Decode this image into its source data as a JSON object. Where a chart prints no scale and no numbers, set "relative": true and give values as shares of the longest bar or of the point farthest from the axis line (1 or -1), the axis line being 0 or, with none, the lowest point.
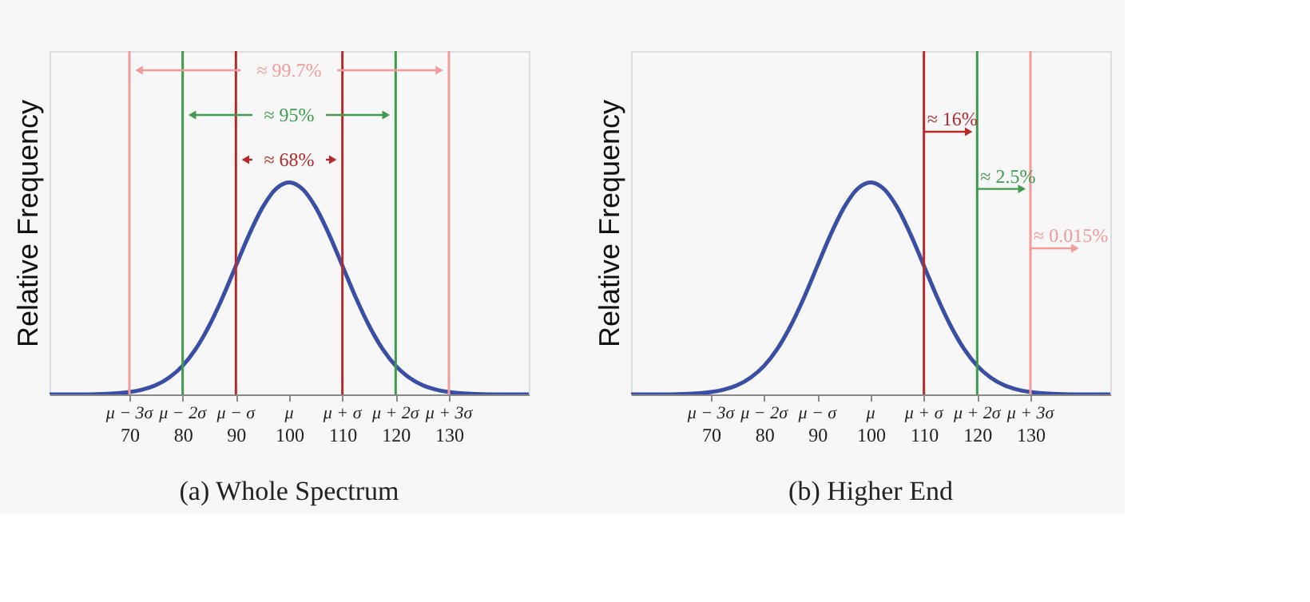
{
  "chart_data": [
    {
      "type": "line",
      "relative": true,
      "title": "(a) Whole Spectrum",
      "ylabel": "Relative Frequency",
      "grid": false,
      "marker": "none",
      "line_style": "solid",
      "x": [
        55,
        60,
        65,
        70,
        72.5,
        75,
        77.5,
        80,
        82.5,
        85,
        87.5,
        90,
        92.5,
        95,
        97.5,
        100,
        102.5,
        105,
        107.5,
        110,
        112.5,
        115,
        117.5,
        120,
        122.5,
        125,
        127.5,
        130,
        135,
        140,
        145
      ],
      "series": [
        {
          "color": "#3a4fa3",
          "values": [
            0.0,
            0.0,
            0.002,
            0.011,
            0.023,
            0.044,
            0.08,
            0.135,
            0.216,
            0.325,
            0.458,
            0.607,
            0.755,
            0.882,
            0.969,
            1,
            0.969,
            0.882,
            0.755,
            0.607,
            0.458,
            0.325,
            0.216,
            0.135,
            0.08,
            0.044,
            0.023,
            0.011,
            0.002,
            0.0,
            0.0
          ]
        }
      ],
      "xlim": [
        55,
        145
      ],
      "xticks": [
        70,
        80,
        90,
        100,
        110,
        120,
        130
      ],
      "ref_lines": [
        {
          "axis": "x",
          "value": 70,
          "color": "#f39a9a"
        },
        {
          "axis": "x",
          "value": 80,
          "color": "#3f9a4c"
        },
        {
          "axis": "x",
          "value": 90,
          "color": "#b32b2b"
        },
        {
          "axis": "x",
          "value": 110,
          "color": "#b32b2b"
        },
        {
          "axis": "x",
          "value": 120,
          "color": "#3f9a4c"
        },
        {
          "axis": "x",
          "value": 130,
          "color": "#f39a9a"
        }
      ],
      "annotations": [
        "≈ 99.7%",
        "≈ 95%",
        "≈ 68%",
        "μ − 3σ",
        "μ − 2σ",
        "μ − σ",
        "μ",
        "μ + σ",
        "μ + 2σ",
        "μ + 3σ"
      ]
    },
    {
      "type": "line",
      "relative": true,
      "title": "(b) Higher End",
      "ylabel": "Relative Frequency",
      "grid": false,
      "marker": "none",
      "line_style": "solid",
      "x": [
        55,
        60,
        65,
        70,
        72.5,
        75,
        77.5,
        80,
        82.5,
        85,
        87.5,
        90,
        92.5,
        95,
        97.5,
        100,
        102.5,
        105,
        107.5,
        110,
        112.5,
        115,
        117.5,
        120,
        122.5,
        125,
        127.5,
        130,
        135,
        140,
        145
      ],
      "series": [
        {
          "color": "#3a4fa3",
          "values": [
            0.0,
            0.0,
            0.002,
            0.011,
            0.023,
            0.044,
            0.08,
            0.135,
            0.216,
            0.325,
            0.458,
            0.607,
            0.755,
            0.882,
            0.969,
            1,
            0.969,
            0.882,
            0.755,
            0.607,
            0.458,
            0.325,
            0.216,
            0.135,
            0.08,
            0.044,
            0.023,
            0.011,
            0.002,
            0.0,
            0.0
          ]
        }
      ],
      "xlim": [
        55,
        145
      ],
      "xticks": [
        70,
        80,
        90,
        100,
        110,
        120,
        130
      ],
      "ref_lines": [
        {
          "axis": "x",
          "value": 110,
          "color": "#b32b2b"
        },
        {
          "axis": "x",
          "value": 120,
          "color": "#3f9a4c"
        },
        {
          "axis": "x",
          "value": 130,
          "color": "#f39a9a"
        }
      ],
      "annotations": [
        {
          "text": "≈ 16%",
          "x": 110,
          "y": 1.3
        },
        {
          "text": "≈ 2.5%",
          "x": 120,
          "y": 1.03
        },
        {
          "text": "≈ 0.015%",
          "x": 130,
          "y": 0.75
        },
        "μ − 3σ",
        "μ − 2σ",
        "μ − σ",
        "μ",
        "μ + σ",
        "μ + 2σ",
        "μ + 3σ"
      ]
    }
  ]
}
